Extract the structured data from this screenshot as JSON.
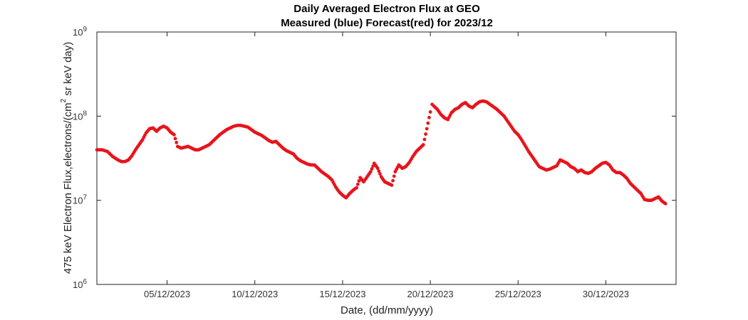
{
  "chart_data": {
    "type": "scatter",
    "title": [
      "Daily Averaged Electron Flux at GEO",
      "Measured (blue) Forecast(red) for 2023/12"
    ],
    "xlabel": "Date, (dd/mm/yyyy)",
    "ylabel": {
      "base": "475 keV Electron Flux,electrons/(cm",
      "sup": "2",
      "rest": " sr keV day)"
    },
    "x_range": [
      "2023-12-01",
      "2023-12-33"
    ],
    "xlim_days": [
      1.0,
      34.0
    ],
    "x_ticks": [
      {
        "day": 4,
        "label": "05/12/2023"
      },
      {
        "day": 9,
        "label": "10/12/2023"
      },
      {
        "day": 14,
        "label": "15/12/2023"
      },
      {
        "day": 19,
        "label": "20/12/2023"
      },
      {
        "day": 24,
        "label": "25/12/2023"
      },
      {
        "day": 29,
        "label": "30/12/2023"
      }
    ],
    "y_scale": "log",
    "ylim_exp": [
      6,
      9
    ],
    "y_ticks": [
      {
        "exp": 6,
        "base": "10",
        "sup": "6"
      },
      {
        "exp": 7,
        "base": "10",
        "sup": "7"
      },
      {
        "exp": 8,
        "base": "10",
        "sup": "8"
      },
      {
        "exp": 9,
        "base": "10",
        "sup": "9"
      }
    ],
    "grid": false,
    "series": [
      {
        "color": "#e8141c",
        "points": [
          [
            0.0,
            7.6
          ],
          [
            0.3,
            7.6
          ],
          [
            0.6,
            7.58
          ],
          [
            0.9,
            7.52
          ],
          [
            1.2,
            7.48
          ],
          [
            1.4,
            7.46
          ],
          [
            1.6,
            7.46
          ],
          [
            1.8,
            7.48
          ],
          [
            2.0,
            7.53
          ],
          [
            2.2,
            7.6
          ],
          [
            2.4,
            7.66
          ],
          [
            2.6,
            7.72
          ],
          [
            2.8,
            7.8
          ],
          [
            3.0,
            7.85
          ],
          [
            3.2,
            7.86
          ],
          [
            3.4,
            7.82
          ],
          [
            3.6,
            7.86
          ],
          [
            3.8,
            7.88
          ],
          [
            4.0,
            7.86
          ],
          [
            4.2,
            7.81
          ],
          [
            4.4,
            7.78
          ],
          [
            4.6,
            7.64
          ],
          [
            4.8,
            7.62
          ],
          [
            5.0,
            7.63
          ],
          [
            5.2,
            7.64
          ],
          [
            5.4,
            7.62
          ],
          [
            5.6,
            7.6
          ],
          [
            5.8,
            7.6
          ],
          [
            6.0,
            7.62
          ],
          [
            6.2,
            7.64
          ],
          [
            6.4,
            7.66
          ],
          [
            6.6,
            7.7
          ],
          [
            6.8,
            7.74
          ],
          [
            7.0,
            7.78
          ],
          [
            7.2,
            7.81
          ],
          [
            7.4,
            7.84
          ],
          [
            7.6,
            7.86
          ],
          [
            7.8,
            7.88
          ],
          [
            8.0,
            7.89
          ],
          [
            8.2,
            7.89
          ],
          [
            8.4,
            7.88
          ],
          [
            8.6,
            7.87
          ],
          [
            8.8,
            7.84
          ],
          [
            9.0,
            7.81
          ],
          [
            9.2,
            7.79
          ],
          [
            9.4,
            7.77
          ],
          [
            9.6,
            7.74
          ],
          [
            9.8,
            7.71
          ],
          [
            10.0,
            7.69
          ],
          [
            10.2,
            7.7
          ],
          [
            10.4,
            7.66
          ],
          [
            10.6,
            7.62
          ],
          [
            10.8,
            7.59
          ],
          [
            11.0,
            7.57
          ],
          [
            11.2,
            7.55
          ],
          [
            11.4,
            7.5
          ],
          [
            11.6,
            7.47
          ],
          [
            11.8,
            7.45
          ],
          [
            12.0,
            7.43
          ],
          [
            12.2,
            7.42
          ],
          [
            12.4,
            7.42
          ],
          [
            12.6,
            7.38
          ],
          [
            12.8,
            7.34
          ],
          [
            13.0,
            7.31
          ],
          [
            13.2,
            7.28
          ],
          [
            13.4,
            7.24
          ],
          [
            13.6,
            7.16
          ],
          [
            13.8,
            7.1
          ],
          [
            14.0,
            7.06
          ],
          [
            14.2,
            7.03
          ],
          [
            14.4,
            7.08
          ],
          [
            14.6,
            7.12
          ],
          [
            14.8,
            7.15
          ],
          [
            15.0,
            7.27
          ],
          [
            15.2,
            7.22
          ],
          [
            15.4,
            7.28
          ],
          [
            15.6,
            7.34
          ],
          [
            15.8,
            7.44
          ],
          [
            16.0,
            7.38
          ],
          [
            16.2,
            7.28
          ],
          [
            16.4,
            7.22
          ],
          [
            16.6,
            7.2
          ],
          [
            16.8,
            7.18
          ],
          [
            17.0,
            7.34
          ],
          [
            17.2,
            7.42
          ],
          [
            17.4,
            7.38
          ],
          [
            17.6,
            7.4
          ],
          [
            17.8,
            7.45
          ],
          [
            18.0,
            7.52
          ],
          [
            18.2,
            7.58
          ],
          [
            18.4,
            7.62
          ],
          [
            18.6,
            7.66
          ],
          [
            18.8,
            7.85
          ],
          [
            19.0,
            8.05
          ],
          [
            19.1,
            8.14
          ],
          [
            19.2,
            8.12
          ],
          [
            19.4,
            8.08
          ],
          [
            19.6,
            8.02
          ],
          [
            19.8,
            7.98
          ],
          [
            20.0,
            7.96
          ],
          [
            20.2,
            8.04
          ],
          [
            20.4,
            8.08
          ],
          [
            20.6,
            8.1
          ],
          [
            20.8,
            8.14
          ],
          [
            21.0,
            8.16
          ],
          [
            21.2,
            8.12
          ],
          [
            21.4,
            8.1
          ],
          [
            21.6,
            8.14
          ],
          [
            21.8,
            8.17
          ],
          [
            22.0,
            8.18
          ],
          [
            22.2,
            8.17
          ],
          [
            22.4,
            8.14
          ],
          [
            22.6,
            8.11
          ],
          [
            22.8,
            8.08
          ],
          [
            23.0,
            8.04
          ],
          [
            23.2,
            8.0
          ],
          [
            23.4,
            7.94
          ],
          [
            23.6,
            7.88
          ],
          [
            23.8,
            7.82
          ],
          [
            24.0,
            7.78
          ],
          [
            24.2,
            7.72
          ],
          [
            24.4,
            7.65
          ],
          [
            24.6,
            7.58
          ],
          [
            24.8,
            7.52
          ],
          [
            25.0,
            7.46
          ],
          [
            25.2,
            7.4
          ],
          [
            25.4,
            7.38
          ],
          [
            25.6,
            7.36
          ],
          [
            25.8,
            7.37
          ],
          [
            26.0,
            7.39
          ],
          [
            26.2,
            7.41
          ],
          [
            26.4,
            7.48
          ],
          [
            26.6,
            7.46
          ],
          [
            26.8,
            7.44
          ],
          [
            27.0,
            7.4
          ],
          [
            27.2,
            7.38
          ],
          [
            27.4,
            7.34
          ],
          [
            27.6,
            7.36
          ],
          [
            27.8,
            7.33
          ],
          [
            28.0,
            7.32
          ],
          [
            28.2,
            7.34
          ],
          [
            28.4,
            7.38
          ],
          [
            28.6,
            7.41
          ],
          [
            28.8,
            7.44
          ],
          [
            29.0,
            7.45
          ],
          [
            29.2,
            7.42
          ],
          [
            29.4,
            7.36
          ],
          [
            29.6,
            7.33
          ],
          [
            29.8,
            7.33
          ],
          [
            30.0,
            7.3
          ],
          [
            30.2,
            7.26
          ],
          [
            30.4,
            7.2
          ],
          [
            30.6,
            7.16
          ],
          [
            30.8,
            7.12
          ],
          [
            31.0,
            7.08
          ],
          [
            31.2,
            7.01
          ],
          [
            31.4,
            7.0
          ],
          [
            31.6,
            7.0
          ],
          [
            31.8,
            7.02
          ],
          [
            32.0,
            7.04
          ],
          [
            32.2,
            6.99
          ],
          [
            32.4,
            6.96
          ]
        ]
      }
    ]
  }
}
